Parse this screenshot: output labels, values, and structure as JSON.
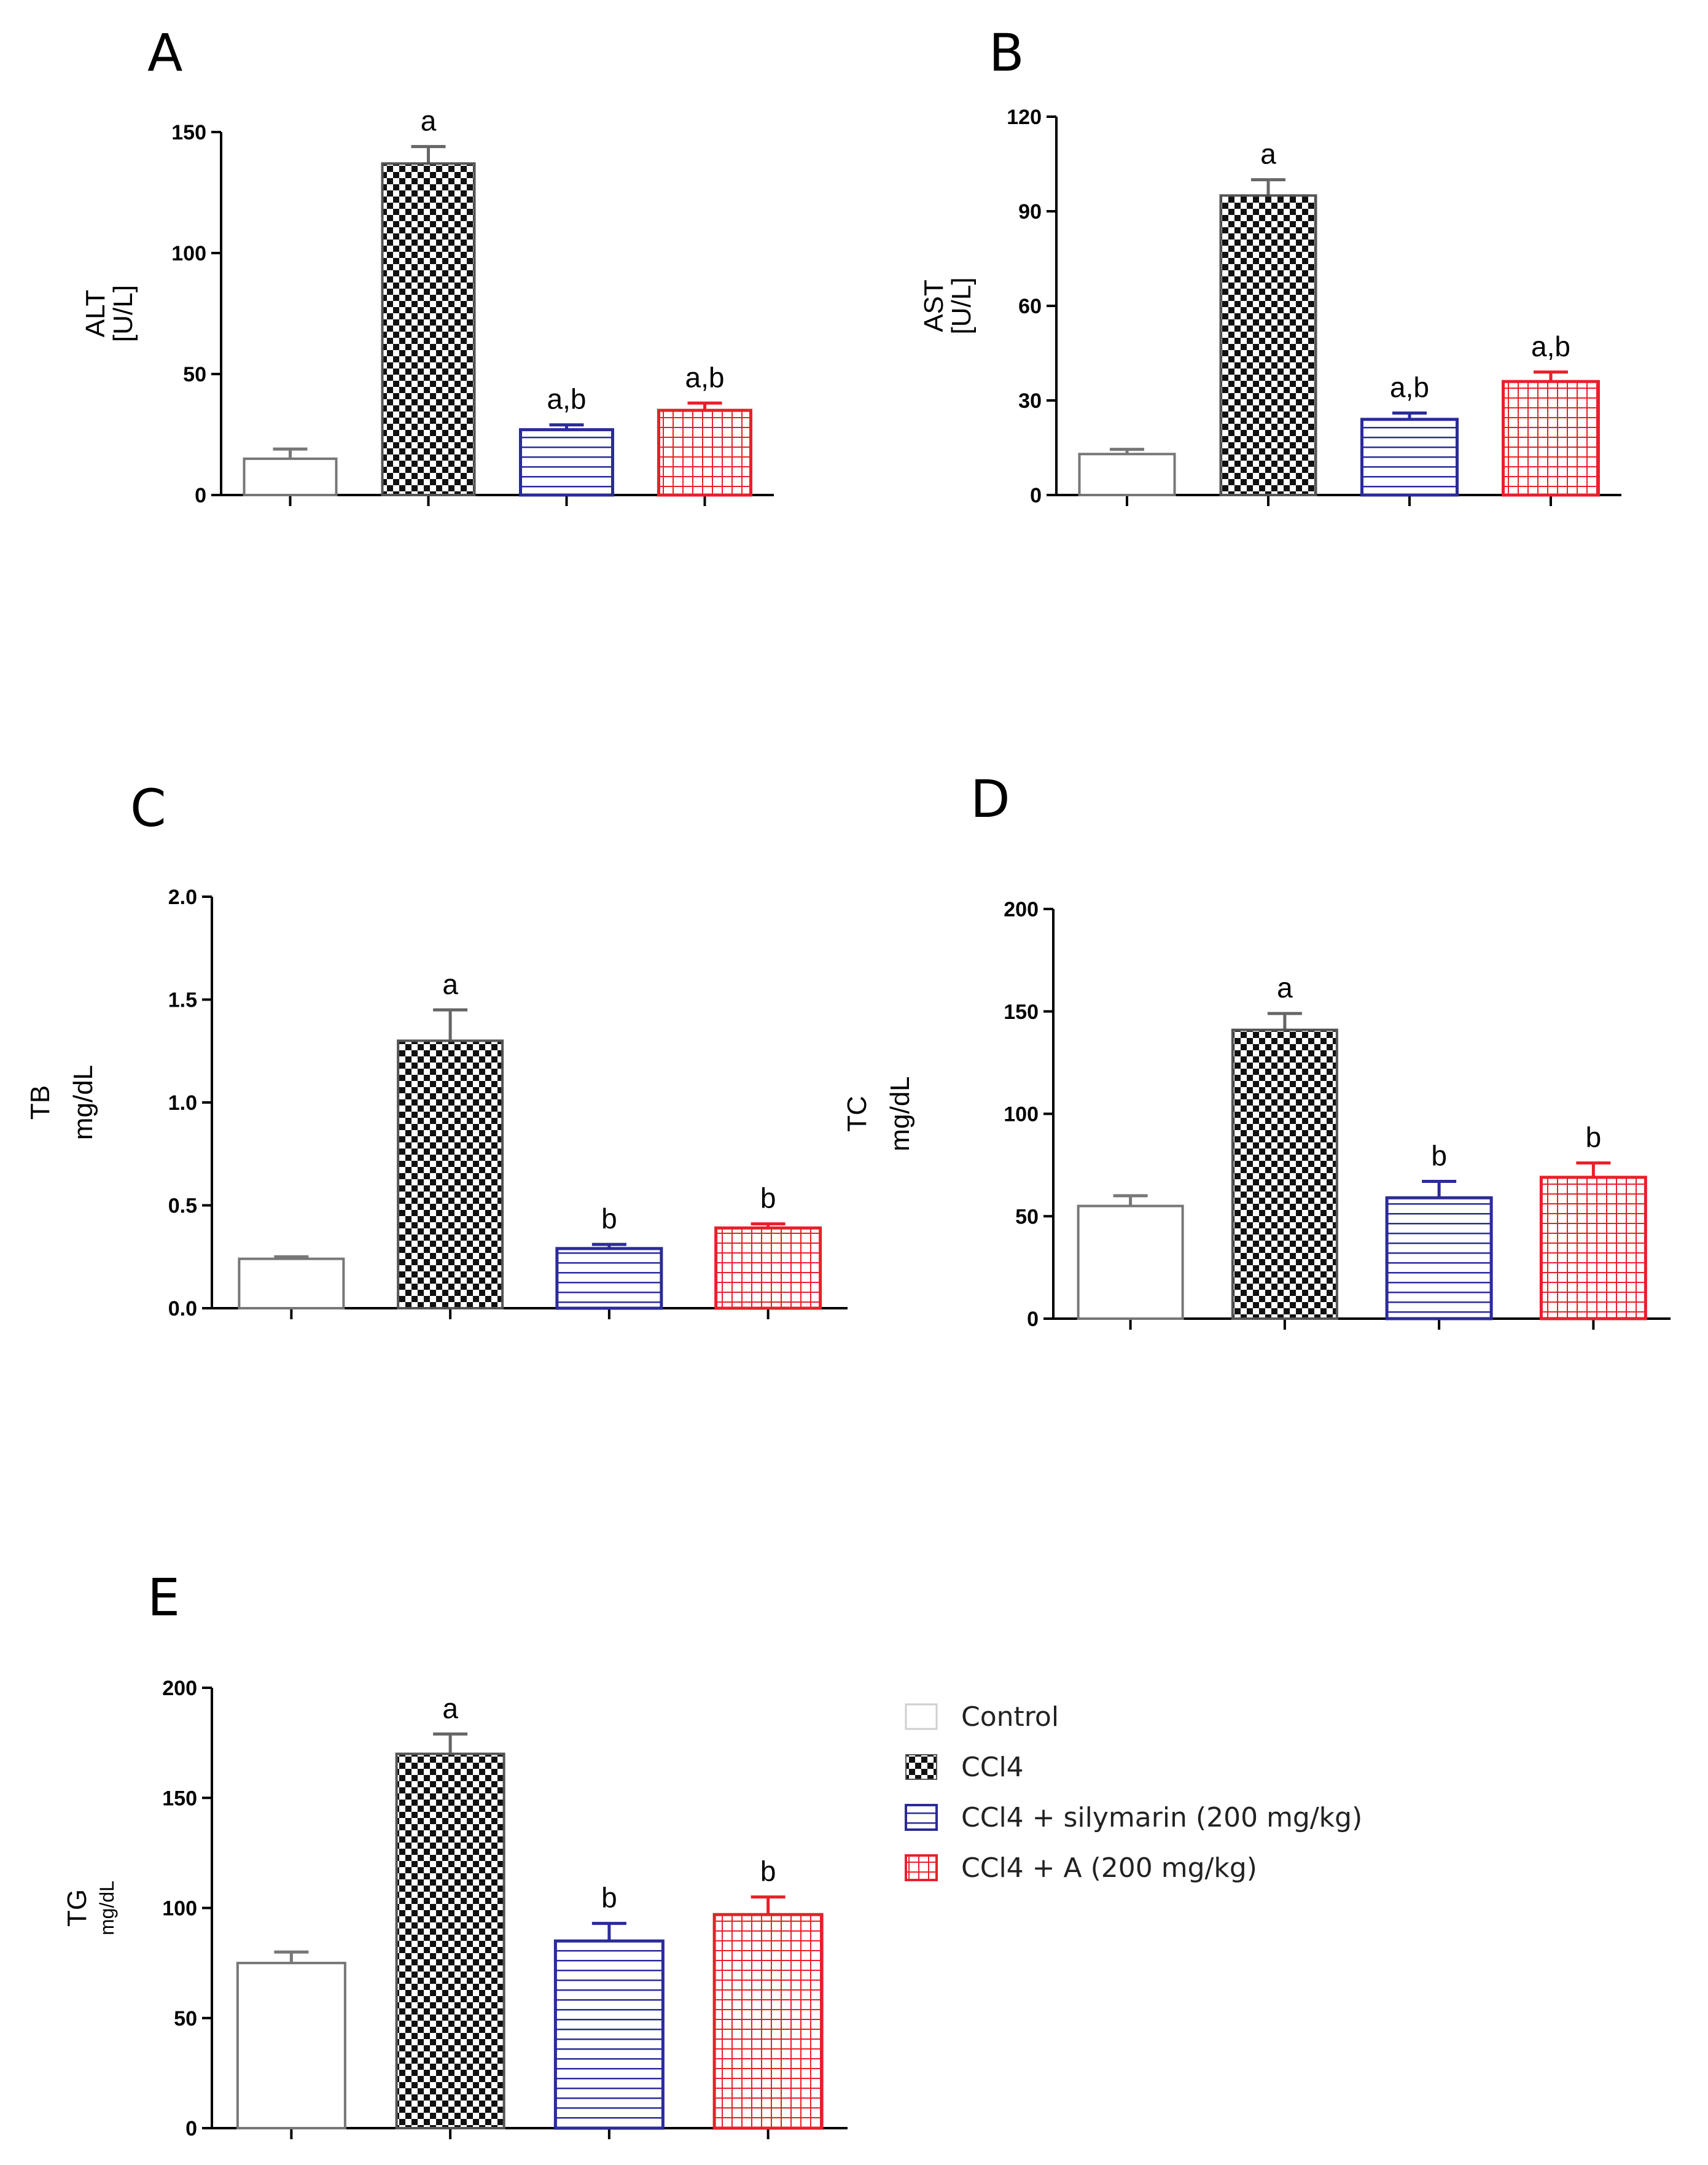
{
  "colors": {
    "control": "#777777",
    "ccl4": "#111111",
    "silymarin": "#2b2b9a",
    "extract": "#e8202a",
    "axis": "#000000"
  },
  "legend": {
    "items": [
      {
        "label": "Control",
        "key": "control",
        "pattern": "none"
      },
      {
        "label": "CCl4",
        "key": "ccl4",
        "pattern": "checker"
      },
      {
        "label": "CCl4 + silymarin (200 mg/kg)",
        "key": "silymarin",
        "pattern": "hlines"
      },
      {
        "label": "CCl4 + A (200 mg/kg)",
        "key": "extract",
        "pattern": "grid"
      }
    ]
  },
  "chart_data": [
    {
      "panel": "A",
      "type": "bar",
      "ylabel_line1": "ALT",
      "ylabel_line2": "[U/L]",
      "ylim": [
        0,
        150
      ],
      "yticks": [
        "0",
        "50",
        "100",
        "150"
      ],
      "ytick_values": [
        0,
        50,
        100,
        150
      ],
      "categories": [
        "Control",
        "CCl4",
        "CCl4 + silymarin (200 mg/kg)",
        "CCl4 + A (200 mg/kg)"
      ],
      "values": [
        15,
        137,
        27,
        35
      ],
      "errors": [
        4,
        7,
        2,
        3
      ],
      "labels": [
        "",
        "a",
        "a,b",
        "a,b"
      ]
    },
    {
      "panel": "B",
      "type": "bar",
      "ylabel_line1": "AST",
      "ylabel_line2": "[U/L]",
      "ylim": [
        0,
        120
      ],
      "yticks": [
        "0",
        "30",
        "60",
        "90",
        "120"
      ],
      "ytick_values": [
        0,
        30,
        60,
        90,
        120
      ],
      "categories": [
        "Control",
        "CCl4",
        "CCl4 + silymarin (200 mg/kg)",
        "CCl4 + A (200 mg/kg)"
      ],
      "values": [
        13,
        95,
        24,
        36
      ],
      "errors": [
        1.5,
        5,
        2,
        3
      ],
      "labels": [
        "",
        "a",
        "a,b",
        "a,b"
      ]
    },
    {
      "panel": "C",
      "type": "bar",
      "ylabel_line1": "TB",
      "ylabel_line2": "mg/dL",
      "ylim": [
        0,
        2.0
      ],
      "yticks": [
        "0.0",
        "0.5",
        "1.0",
        "1.5",
        "2.0"
      ],
      "ytick_values": [
        0,
        0.5,
        1.0,
        1.5,
        2.0
      ],
      "categories": [
        "Control",
        "CCl4",
        "CCl4 + silymarin (200 mg/kg)",
        "CCl4 + A (200 mg/kg)"
      ],
      "values": [
        0.24,
        1.3,
        0.29,
        0.39
      ],
      "errors": [
        0.01,
        0.15,
        0.02,
        0.02
      ],
      "labels": [
        "",
        "a",
        "b",
        "b"
      ]
    },
    {
      "panel": "D",
      "type": "bar",
      "ylabel_line1": "TC",
      "ylabel_line2": "mg/dL",
      "ylim": [
        0,
        200
      ],
      "yticks": [
        "0",
        "50",
        "100",
        "150",
        "200"
      ],
      "ytick_values": [
        0,
        50,
        100,
        150,
        200
      ],
      "categories": [
        "Control",
        "CCl4",
        "CCl4 + silymarin (200 mg/kg)",
        "CCl4 + A (200 mg/kg)"
      ],
      "values": [
        55,
        141,
        59,
        69
      ],
      "errors": [
        5,
        8,
        8,
        7
      ],
      "labels": [
        "",
        "a",
        "b",
        "b"
      ]
    },
    {
      "panel": "E",
      "type": "bar",
      "ylabel_line1": "TG",
      "ylabel_line2": "mg/dL",
      "ylim": [
        0,
        200
      ],
      "yticks": [
        "0",
        "50",
        "100",
        "150",
        "200"
      ],
      "ytick_values": [
        0,
        50,
        100,
        150,
        200
      ],
      "categories": [
        "Control",
        "CCl4",
        "CCl4 + silymarin (200 mg/kg)",
        "CCl4 + A (200 mg/kg)"
      ],
      "values": [
        75,
        170,
        85,
        97
      ],
      "errors": [
        5,
        9,
        8,
        8
      ],
      "labels": [
        "",
        "a",
        "b",
        "b"
      ]
    }
  ]
}
